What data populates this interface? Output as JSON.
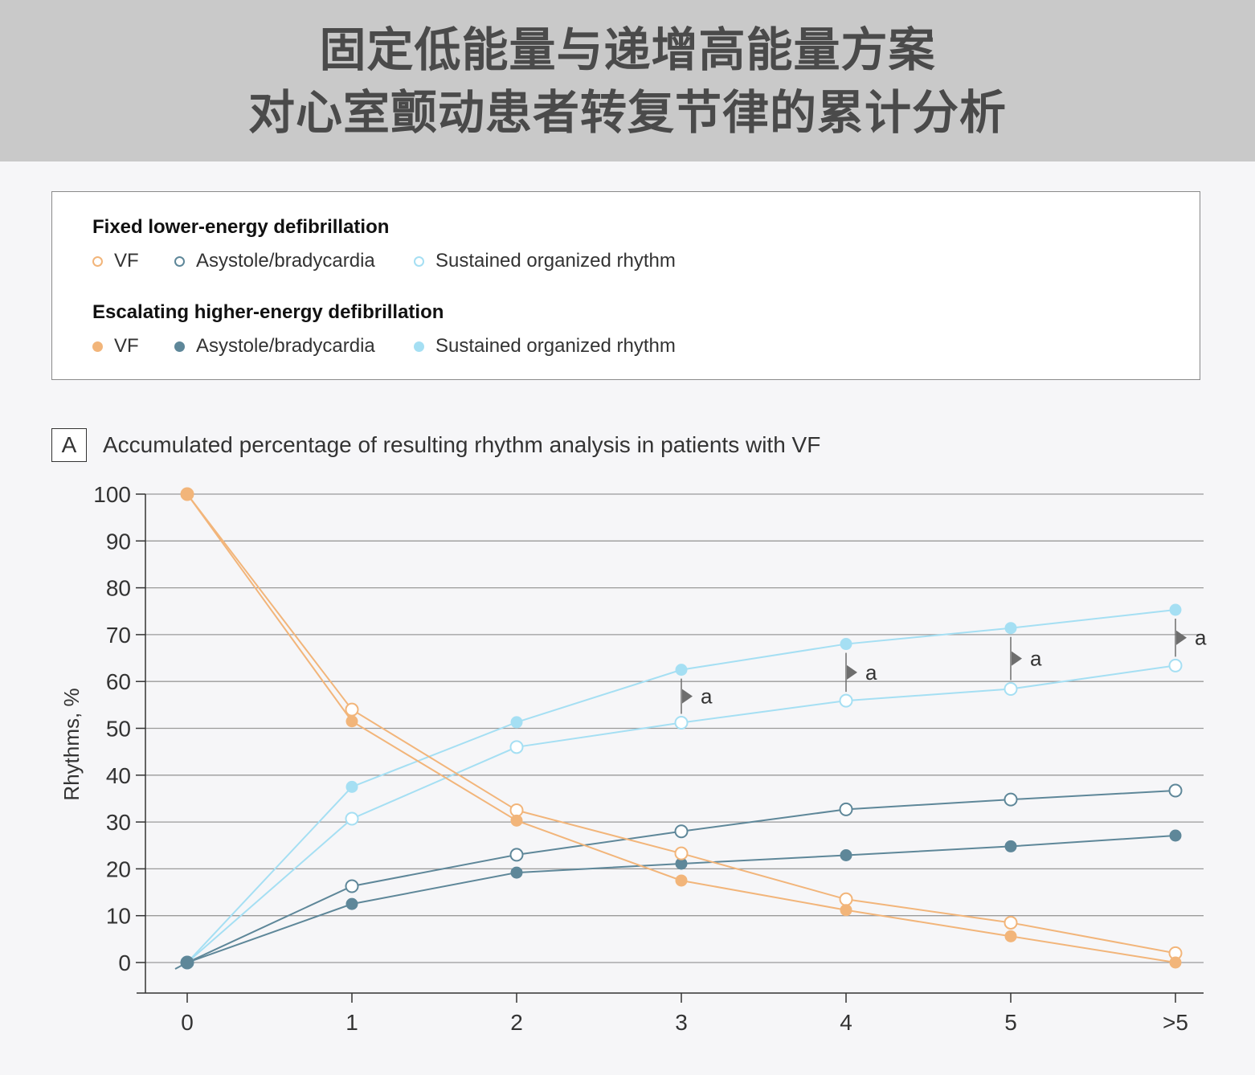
{
  "header": {
    "line1": "固定低能量与递增高能量方案",
    "line2": "对心室颤动患者转复节律的累计分析"
  },
  "legend": {
    "group1_title": "Fixed lower-energy defibrillation",
    "group1_items": [
      "VF",
      "Asystole/bradycardia",
      "Sustained organized rhythm"
    ],
    "group2_title": "Escalating higher-energy defibrillation",
    "group2_items": [
      "VF",
      "Asystole/bradycardia",
      "Sustained organized rhythm"
    ]
  },
  "panel": {
    "tag": "A",
    "title": "Accumulated percentage of resulting rhythm analysis in patients with VF"
  },
  "colors": {
    "vf": "#f2b57a",
    "asystole": "#5e8799",
    "organized": "#a5dff3",
    "grid": "#9a9a9a",
    "annotation": "#6e6e6e",
    "header_bg": "#c9c9c9",
    "page_bg": "#f6f6f8"
  },
  "chart_data": {
    "type": "line",
    "title": "Accumulated percentage of resulting rhythm analysis in patients with VF",
    "xlabel": "",
    "ylabel": "Rhythms, %",
    "categories": [
      "0",
      "1",
      "2",
      "3",
      "4",
      "5",
      ">5"
    ],
    "yticks": [
      "0",
      "10",
      "20",
      "30",
      "40",
      "50",
      "60",
      "70",
      "80",
      "90",
      "100"
    ],
    "ylim": [
      -6,
      100
    ],
    "grid": true,
    "legend_position": "top",
    "series": [
      {
        "name": "VF",
        "group": "Fixed lower-energy defibrillation",
        "marker": "open",
        "color_key": "vf",
        "values": [
          100,
          54,
          32.5,
          23.3,
          13.5,
          8.5,
          2
        ]
      },
      {
        "name": "Asystole/bradycardia",
        "group": "Fixed lower-energy defibrillation",
        "marker": "open",
        "color_key": "asystole",
        "values": [
          0,
          16.3,
          23,
          28,
          32.7,
          34.8,
          36.7
        ]
      },
      {
        "name": "Sustained organized rhythm",
        "group": "Fixed lower-energy defibrillation",
        "marker": "open",
        "color_key": "organized",
        "values": [
          0,
          30.7,
          46,
          51.2,
          55.9,
          58.4,
          63.4
        ]
      },
      {
        "name": "VF",
        "group": "Escalating higher-energy defibrillation",
        "marker": "filled",
        "color_key": "vf",
        "values": [
          100,
          51.5,
          30.3,
          17.5,
          11.2,
          5.6,
          0
        ]
      },
      {
        "name": "Asystole/bradycardia",
        "group": "Escalating higher-energy defibrillation",
        "marker": "filled",
        "color_key": "asystole",
        "values": [
          0,
          12.5,
          19.2,
          21.1,
          22.9,
          24.8,
          27.1
        ]
      },
      {
        "name": "Sustained organized rhythm",
        "group": "Escalating higher-energy defibrillation",
        "marker": "filled",
        "color_key": "organized",
        "values": [
          0,
          37.5,
          51.3,
          62.5,
          68,
          71.4,
          75.3
        ]
      }
    ],
    "annotations": [
      {
        "category": "3",
        "label": "a"
      },
      {
        "category": "4",
        "label": "a"
      },
      {
        "category": "5",
        "label": "a"
      },
      {
        "category": ">5",
        "label": "a"
      }
    ]
  }
}
